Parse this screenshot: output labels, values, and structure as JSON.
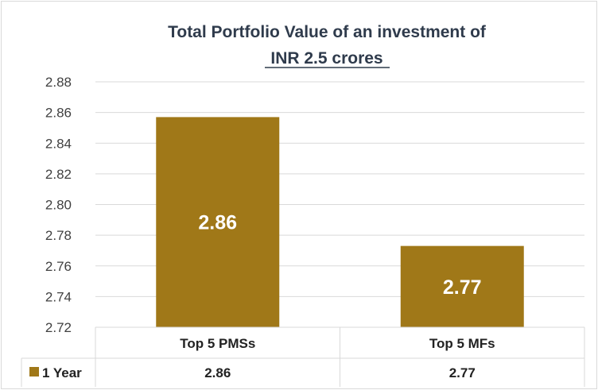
{
  "chart_data": {
    "type": "bar",
    "title_line1": "Total Portfolio Value of an investment of",
    "title_line2": "INR 2.5 crores",
    "categories": [
      "Top 5 PMSs",
      "Top 5 MFs"
    ],
    "series": [
      {
        "name": "1 Year",
        "values": [
          2.857,
          2.773
        ],
        "labels": [
          "2.86",
          "2.77"
        ],
        "color": "#a07818"
      }
    ],
    "ylim": [
      2.72,
      2.88
    ],
    "yticks": [
      "2.72",
      "2.74",
      "2.76",
      "2.78",
      "2.80",
      "2.82",
      "2.84",
      "2.86",
      "2.88"
    ],
    "grid": true,
    "data_table": true
  }
}
